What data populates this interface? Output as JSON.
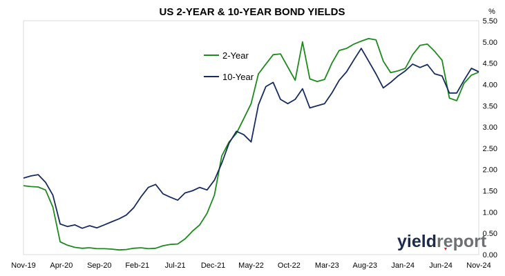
{
  "chart_data": {
    "type": "line",
    "title": "US 2-YEAR & 10-YEAR BOND YIELDS",
    "yunit": "%",
    "ylim": [
      0,
      5.5
    ],
    "yticks": [
      "0.00",
      "0.50",
      "1.00",
      "1.50",
      "2.00",
      "2.50",
      "3.00",
      "3.50",
      "4.00",
      "4.50",
      "5.00",
      "5.50"
    ],
    "xticks": [
      "Nov-19",
      "Apr-20",
      "Sep-20",
      "Feb-21",
      "Jul-21",
      "Dec-21",
      "May-22",
      "Oct-22",
      "Mar-23",
      "Aug-23",
      "Jan-24",
      "Jun-24",
      "Nov-24"
    ],
    "grid": false,
    "legend_position": "upper-center",
    "series": [
      {
        "name": "2-Year",
        "color": "#1b8a1b",
        "values": [
          1.62,
          1.6,
          1.59,
          1.52,
          1.12,
          0.3,
          0.22,
          0.17,
          0.15,
          0.16,
          0.14,
          0.14,
          0.13,
          0.11,
          0.12,
          0.15,
          0.16,
          0.14,
          0.15,
          0.21,
          0.24,
          0.25,
          0.37,
          0.55,
          0.7,
          0.97,
          1.4,
          2.32,
          2.65,
          2.85,
          3.2,
          3.55,
          4.25,
          4.48,
          4.7,
          4.72,
          4.41,
          4.1,
          5.0,
          4.13,
          4.07,
          4.12,
          4.5,
          4.8,
          4.85,
          4.95,
          5.02,
          5.08,
          5.05,
          4.55,
          4.28,
          4.32,
          4.38,
          4.7,
          4.92,
          4.95,
          4.78,
          4.57,
          3.68,
          3.62,
          4.03,
          4.22,
          4.29
        ]
      },
      {
        "name": "10-Year",
        "color": "#152a5e",
        "values": [
          1.8,
          1.85,
          1.88,
          1.7,
          1.4,
          0.72,
          0.66,
          0.7,
          0.62,
          0.68,
          0.63,
          0.7,
          0.77,
          0.84,
          0.93,
          1.1,
          1.36,
          1.58,
          1.65,
          1.43,
          1.35,
          1.28,
          1.45,
          1.5,
          1.58,
          1.52,
          1.75,
          2.15,
          2.62,
          2.9,
          2.82,
          2.65,
          3.52,
          3.95,
          4.05,
          3.65,
          3.55,
          3.65,
          3.9,
          3.45,
          3.5,
          3.55,
          3.8,
          4.1,
          4.3,
          4.58,
          4.85,
          4.55,
          4.25,
          3.92,
          4.05,
          4.2,
          4.32,
          4.48,
          4.4,
          4.47,
          4.25,
          4.2,
          3.8,
          3.8,
          4.1,
          4.38,
          4.3
        ]
      }
    ]
  },
  "watermark": {
    "part1": "yield",
    "part2": "report"
  }
}
